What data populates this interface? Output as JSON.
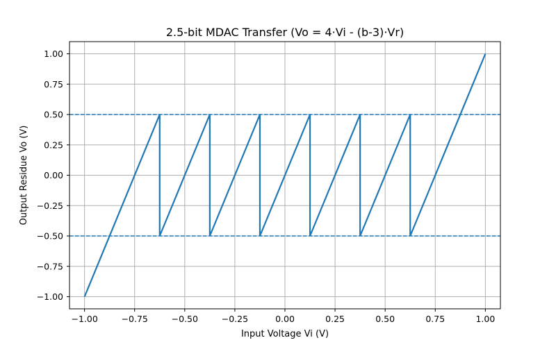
{
  "chart_data": {
    "type": "line",
    "title": "2.5-bit MDAC Transfer (Vo = 4·Vi - (b-3)·Vr)",
    "xlabel": "Input Voltage Vi (V)",
    "ylabel": "Output Residue Vo (V)",
    "xlim": [
      -1.075,
      1.075
    ],
    "ylim": [
      -1.1,
      1.1
    ],
    "grid": true,
    "xticks": [
      -1.0,
      -0.75,
      -0.5,
      -0.25,
      0.0,
      0.25,
      0.5,
      0.75,
      1.0
    ],
    "xtick_labels": [
      "−1.00",
      "−0.75",
      "−0.50",
      "−0.25",
      "0.00",
      "0.25",
      "0.50",
      "0.75",
      "1.00"
    ],
    "yticks": [
      -1.0,
      -0.75,
      -0.5,
      -0.25,
      0.0,
      0.25,
      0.5,
      0.75,
      1.0
    ],
    "ytick_labels": [
      "−1.00",
      "−0.75",
      "−0.50",
      "−0.25",
      "0.00",
      "0.25",
      "0.50",
      "0.75",
      "1.00"
    ],
    "series": [
      {
        "color": "#1f77b4",
        "style": "solid",
        "x": [
          -1.0,
          -0.625,
          -0.625,
          -0.375,
          -0.375,
          -0.125,
          -0.125,
          0.125,
          0.125,
          0.375,
          0.375,
          0.625,
          0.625,
          1.0
        ],
        "y": [
          -1.0,
          0.5,
          -0.5,
          0.5,
          -0.5,
          0.5,
          -0.5,
          0.5,
          -0.5,
          0.5,
          -0.5,
          0.5,
          -0.5,
          1.0
        ]
      }
    ],
    "hlines": [
      {
        "y": 0.5,
        "color": "#1f77b4",
        "style": "dashed"
      },
      {
        "y": -0.5,
        "color": "#1f77b4",
        "style": "dashed"
      }
    ]
  }
}
